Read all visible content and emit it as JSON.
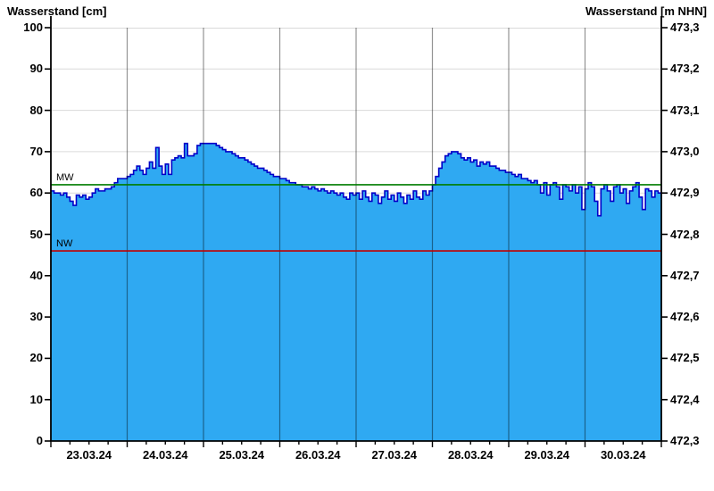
{
  "chart_data": {
    "type": "area",
    "title": "",
    "left_axis": {
      "title": "Wasserstand [cm]",
      "min": 0,
      "max": 100,
      "tick_step": 10,
      "tick_labels": [
        "100",
        "90",
        "80",
        "70",
        "60",
        "50",
        "40",
        "30",
        "20",
        "10",
        "0"
      ]
    },
    "right_axis": {
      "title": "Wasserstand [m NHN]",
      "min": "472,3",
      "max": "473,3",
      "tick_labels": [
        "473,3",
        "473,2",
        "473,1",
        "473,0",
        "472,9",
        "472,8",
        "472,7",
        "472,6",
        "472,5",
        "472,4",
        "472,3"
      ]
    },
    "x_axis": {
      "tick_labels": [
        "23.03.24",
        "24.03.24",
        "25.03.24",
        "26.03.24",
        "27.03.24",
        "28.03.24",
        "29.03.24",
        "30.03.24"
      ],
      "days_shown": 8,
      "minor_tick_hours": 6,
      "grid": "vertical-lines-at-day-boundaries"
    },
    "reference_lines": [
      {
        "label": "MW",
        "value_cm": 62,
        "color": "#007D00"
      },
      {
        "label": "NW",
        "value_cm": 46,
        "color": "#C00000"
      }
    ],
    "series": [
      {
        "name": "Wasserstand",
        "unit": "cm",
        "interval_hours": 1,
        "values": [
          60.5,
          60,
          60,
          59.5,
          60,
          59,
          58,
          57,
          59.5,
          59,
          59.5,
          58.5,
          59,
          60,
          61,
          60.5,
          60.5,
          61,
          61,
          61.5,
          62.5,
          63.5,
          63.5,
          63.5,
          64,
          64.5,
          65.5,
          66.5,
          65.5,
          64.5,
          66,
          67.5,
          66,
          71,
          66.5,
          64.5,
          67,
          64.5,
          68,
          68.5,
          69,
          68.5,
          72,
          69,
          69,
          69.5,
          71.5,
          72,
          72,
          72,
          72,
          72,
          71.5,
          71,
          70.5,
          70,
          70,
          69.5,
          69,
          68.5,
          68.5,
          68,
          67.5,
          67,
          66.5,
          66,
          66,
          65.5,
          65,
          64.5,
          64,
          64,
          63.5,
          63.5,
          63,
          62.5,
          62.5,
          62,
          62,
          61.5,
          61.5,
          61,
          61.5,
          61,
          60.5,
          61,
          60.5,
          60,
          60.5,
          60,
          59.5,
          60,
          59,
          58.5,
          60,
          59.5,
          60,
          58.5,
          60.5,
          59,
          58,
          60,
          59.5,
          57.5,
          59,
          60.5,
          58.5,
          59.5,
          58,
          60,
          59,
          57.5,
          59.5,
          58.5,
          60.5,
          59,
          58.5,
          60.5,
          59.5,
          60.5,
          62,
          64,
          66,
          67.5,
          69,
          69.5,
          70,
          70,
          69.5,
          68.5,
          68,
          68.5,
          67.5,
          68,
          66.5,
          67.5,
          67,
          67.5,
          66.5,
          66.5,
          66,
          65.5,
          65.5,
          65,
          65,
          64.5,
          64,
          64.5,
          63.5,
          63.5,
          63,
          62.5,
          63,
          62,
          60,
          62.5,
          59.5,
          62,
          62.5,
          61.5,
          58.5,
          62,
          61.5,
          60.5,
          62,
          60,
          61.5,
          56,
          61,
          62.5,
          61.5,
          58,
          54.5,
          61,
          62,
          60.5,
          58,
          61.5,
          62,
          60,
          61,
          57.5,
          60.5,
          61.5,
          62.5,
          59,
          56,
          61,
          60.5,
          59,
          60.5,
          60,
          58.5
        ]
      }
    ],
    "style": {
      "fill_color": "#2FA9F2",
      "line_color": "#0000C8",
      "grid_color": "#DADADA",
      "day_grid_color": "rgba(0,0,0,0.42)",
      "axis_color": "#000000",
      "background": "#FFFFFF"
    },
    "ylim_cm": [
      0,
      100
    ],
    "ylim_m_nhn": [
      472.3,
      473.3
    ],
    "legend_position": "none"
  }
}
